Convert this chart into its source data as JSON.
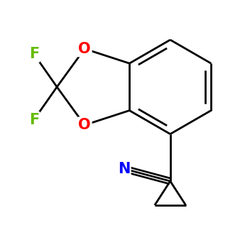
{
  "background_color": "#ffffff",
  "bond_color": "#000000",
  "bond_width": 2.0,
  "atom_colors": {
    "O": "#ff0000",
    "F": "#66bb00",
    "N": "#0000ff",
    "C": "#000000"
  },
  "font_size_atoms": 13,
  "figsize": [
    3.45,
    3.45
  ],
  "dpi": 100
}
